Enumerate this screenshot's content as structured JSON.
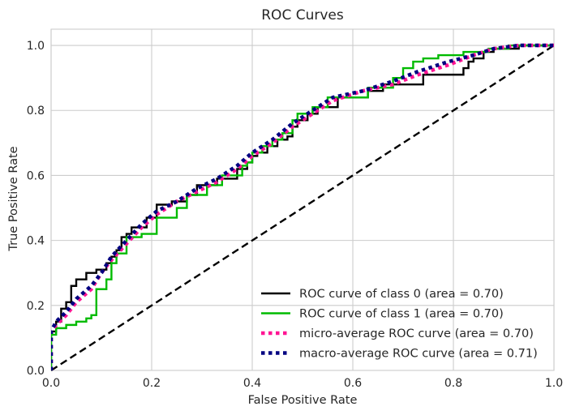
{
  "chart_data": {
    "type": "line",
    "title": "ROC Curves",
    "xlabel": "False Positive Rate",
    "ylabel": "True Positive Rate",
    "xlim": [
      0.0,
      1.0
    ],
    "ylim": [
      0.0,
      1.05
    ],
    "xticks": [
      "0.0",
      "0.2",
      "0.4",
      "0.6",
      "0.8",
      "1.0"
    ],
    "yticks": [
      "0.0",
      "0.2",
      "0.4",
      "0.6",
      "0.8",
      "1.0"
    ],
    "grid": true,
    "legend_position": "lower-right",
    "series": [
      {
        "name": "ROC curve of class 0 (area = 0.70)",
        "color": "#000000",
        "style": "solid",
        "points": [
          [
            0,
            0
          ],
          [
            0,
            0.12
          ],
          [
            0.01,
            0.12
          ],
          [
            0.01,
            0.15
          ],
          [
            0.02,
            0.15
          ],
          [
            0.02,
            0.19
          ],
          [
            0.03,
            0.19
          ],
          [
            0.03,
            0.21
          ],
          [
            0.04,
            0.21
          ],
          [
            0.04,
            0.26
          ],
          [
            0.05,
            0.26
          ],
          [
            0.05,
            0.28
          ],
          [
            0.07,
            0.28
          ],
          [
            0.07,
            0.3
          ],
          [
            0.09,
            0.3
          ],
          [
            0.09,
            0.31
          ],
          [
            0.11,
            0.31
          ],
          [
            0.11,
            0.33
          ],
          [
            0.12,
            0.33
          ],
          [
            0.12,
            0.35
          ],
          [
            0.13,
            0.35
          ],
          [
            0.13,
            0.37
          ],
          [
            0.14,
            0.37
          ],
          [
            0.14,
            0.41
          ],
          [
            0.15,
            0.41
          ],
          [
            0.15,
            0.42
          ],
          [
            0.16,
            0.42
          ],
          [
            0.16,
            0.44
          ],
          [
            0.19,
            0.44
          ],
          [
            0.19,
            0.47
          ],
          [
            0.21,
            0.47
          ],
          [
            0.21,
            0.51
          ],
          [
            0.24,
            0.51
          ],
          [
            0.24,
            0.52
          ],
          [
            0.27,
            0.52
          ],
          [
            0.27,
            0.54
          ],
          [
            0.29,
            0.54
          ],
          [
            0.29,
            0.57
          ],
          [
            0.33,
            0.57
          ],
          [
            0.33,
            0.59
          ],
          [
            0.37,
            0.59
          ],
          [
            0.37,
            0.62
          ],
          [
            0.39,
            0.62
          ],
          [
            0.39,
            0.64
          ],
          [
            0.4,
            0.64
          ],
          [
            0.4,
            0.66
          ],
          [
            0.41,
            0.66
          ],
          [
            0.41,
            0.67
          ],
          [
            0.43,
            0.67
          ],
          [
            0.43,
            0.69
          ],
          [
            0.45,
            0.69
          ],
          [
            0.45,
            0.71
          ],
          [
            0.47,
            0.71
          ],
          [
            0.47,
            0.72
          ],
          [
            0.48,
            0.72
          ],
          [
            0.48,
            0.75
          ],
          [
            0.49,
            0.75
          ],
          [
            0.49,
            0.77
          ],
          [
            0.51,
            0.77
          ],
          [
            0.51,
            0.79
          ],
          [
            0.53,
            0.79
          ],
          [
            0.53,
            0.81
          ],
          [
            0.57,
            0.81
          ],
          [
            0.57,
            0.84
          ],
          [
            0.63,
            0.84
          ],
          [
            0.63,
            0.86
          ],
          [
            0.66,
            0.86
          ],
          [
            0.66,
            0.88
          ],
          [
            0.74,
            0.88
          ],
          [
            0.74,
            0.91
          ],
          [
            0.82,
            0.91
          ],
          [
            0.82,
            0.93
          ],
          [
            0.83,
            0.93
          ],
          [
            0.83,
            0.95
          ],
          [
            0.84,
            0.95
          ],
          [
            0.84,
            0.96
          ],
          [
            0.86,
            0.96
          ],
          [
            0.86,
            0.98
          ],
          [
            0.88,
            0.98
          ],
          [
            0.88,
            0.99
          ],
          [
            0.93,
            0.99
          ],
          [
            0.93,
            1.0
          ],
          [
            1.0,
            1.0
          ]
        ]
      },
      {
        "name": "ROC curve of class 1 (area = 0.70)",
        "color": "#00bb00",
        "style": "solid",
        "points": [
          [
            0,
            0
          ],
          [
            0,
            0.11
          ],
          [
            0.01,
            0.11
          ],
          [
            0.01,
            0.13
          ],
          [
            0.03,
            0.13
          ],
          [
            0.03,
            0.14
          ],
          [
            0.05,
            0.14
          ],
          [
            0.05,
            0.15
          ],
          [
            0.07,
            0.15
          ],
          [
            0.07,
            0.16
          ],
          [
            0.08,
            0.16
          ],
          [
            0.08,
            0.17
          ],
          [
            0.09,
            0.17
          ],
          [
            0.09,
            0.25
          ],
          [
            0.11,
            0.25
          ],
          [
            0.11,
            0.28
          ],
          [
            0.12,
            0.28
          ],
          [
            0.12,
            0.33
          ],
          [
            0.13,
            0.33
          ],
          [
            0.13,
            0.36
          ],
          [
            0.15,
            0.36
          ],
          [
            0.15,
            0.41
          ],
          [
            0.18,
            0.41
          ],
          [
            0.18,
            0.42
          ],
          [
            0.21,
            0.42
          ],
          [
            0.21,
            0.47
          ],
          [
            0.25,
            0.47
          ],
          [
            0.25,
            0.5
          ],
          [
            0.27,
            0.5
          ],
          [
            0.27,
            0.54
          ],
          [
            0.31,
            0.54
          ],
          [
            0.31,
            0.57
          ],
          [
            0.34,
            0.57
          ],
          [
            0.34,
            0.6
          ],
          [
            0.38,
            0.6
          ],
          [
            0.38,
            0.63
          ],
          [
            0.39,
            0.63
          ],
          [
            0.39,
            0.64
          ],
          [
            0.4,
            0.64
          ],
          [
            0.4,
            0.67
          ],
          [
            0.42,
            0.67
          ],
          [
            0.42,
            0.69
          ],
          [
            0.44,
            0.69
          ],
          [
            0.44,
            0.71
          ],
          [
            0.46,
            0.71
          ],
          [
            0.46,
            0.73
          ],
          [
            0.48,
            0.73
          ],
          [
            0.48,
            0.77
          ],
          [
            0.49,
            0.77
          ],
          [
            0.49,
            0.79
          ],
          [
            0.52,
            0.79
          ],
          [
            0.52,
            0.81
          ],
          [
            0.55,
            0.81
          ],
          [
            0.55,
            0.84
          ],
          [
            0.63,
            0.84
          ],
          [
            0.63,
            0.87
          ],
          [
            0.68,
            0.87
          ],
          [
            0.68,
            0.9
          ],
          [
            0.7,
            0.9
          ],
          [
            0.7,
            0.93
          ],
          [
            0.72,
            0.93
          ],
          [
            0.72,
            0.95
          ],
          [
            0.74,
            0.95
          ],
          [
            0.74,
            0.96
          ],
          [
            0.77,
            0.96
          ],
          [
            0.77,
            0.97
          ],
          [
            0.82,
            0.97
          ],
          [
            0.82,
            0.98
          ],
          [
            0.87,
            0.98
          ],
          [
            0.87,
            0.99
          ],
          [
            0.91,
            0.99
          ],
          [
            0.91,
            1.0
          ],
          [
            1.0,
            1.0
          ]
        ]
      },
      {
        "name": "micro-average ROC curve (area = 0.70)",
        "color": "#ff1493",
        "style": "dotted",
        "points": [
          [
            0,
            0
          ],
          [
            0,
            0.12
          ],
          [
            0.01,
            0.14
          ],
          [
            0.03,
            0.17
          ],
          [
            0.05,
            0.21
          ],
          [
            0.08,
            0.25
          ],
          [
            0.1,
            0.3
          ],
          [
            0.12,
            0.34
          ],
          [
            0.15,
            0.39
          ],
          [
            0.18,
            0.44
          ],
          [
            0.21,
            0.48
          ],
          [
            0.25,
            0.52
          ],
          [
            0.29,
            0.55
          ],
          [
            0.33,
            0.58
          ],
          [
            0.37,
            0.62
          ],
          [
            0.4,
            0.66
          ],
          [
            0.44,
            0.7
          ],
          [
            0.48,
            0.75
          ],
          [
            0.52,
            0.79
          ],
          [
            0.56,
            0.83
          ],
          [
            0.62,
            0.86
          ],
          [
            0.68,
            0.88
          ],
          [
            0.73,
            0.91
          ],
          [
            0.79,
            0.94
          ],
          [
            0.84,
            0.97
          ],
          [
            0.88,
            0.99
          ],
          [
            0.93,
            1.0
          ],
          [
            1.0,
            1.0
          ]
        ]
      },
      {
        "name": "macro-average ROC curve (area = 0.71)",
        "color": "#000080",
        "style": "dotted",
        "points": [
          [
            0,
            0
          ],
          [
            0,
            0.12
          ],
          [
            0.01,
            0.15
          ],
          [
            0.03,
            0.18
          ],
          [
            0.05,
            0.22
          ],
          [
            0.08,
            0.26
          ],
          [
            0.1,
            0.3
          ],
          [
            0.12,
            0.35
          ],
          [
            0.15,
            0.4
          ],
          [
            0.18,
            0.45
          ],
          [
            0.21,
            0.49
          ],
          [
            0.25,
            0.52
          ],
          [
            0.29,
            0.56
          ],
          [
            0.33,
            0.59
          ],
          [
            0.37,
            0.63
          ],
          [
            0.4,
            0.67
          ],
          [
            0.44,
            0.71
          ],
          [
            0.48,
            0.76
          ],
          [
            0.52,
            0.8
          ],
          [
            0.56,
            0.84
          ],
          [
            0.62,
            0.86
          ],
          [
            0.68,
            0.89
          ],
          [
            0.73,
            0.92
          ],
          [
            0.79,
            0.95
          ],
          [
            0.84,
            0.97
          ],
          [
            0.88,
            0.99
          ],
          [
            0.93,
            1.0
          ],
          [
            1.0,
            1.0
          ]
        ]
      },
      {
        "name": "chance",
        "color": "#000000",
        "style": "dashed",
        "in_legend": false,
        "points": [
          [
            0,
            0
          ],
          [
            1,
            1
          ]
        ]
      }
    ]
  }
}
